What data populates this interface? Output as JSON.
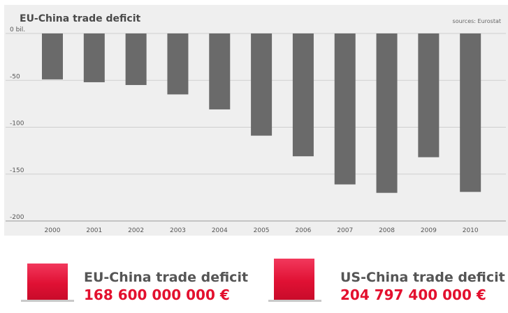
{
  "title": "EU-China trade deficit",
  "source": "sources: Eurostat",
  "chart_data": {
    "type": "bar",
    "title": "EU-China trade deficit",
    "categories": [
      "2000",
      "2001",
      "2002",
      "2003",
      "2004",
      "2005",
      "2006",
      "2007",
      "2008",
      "2009",
      "2010"
    ],
    "values": [
      -49,
      -52,
      -55,
      -65,
      -81,
      -109,
      -131,
      -161,
      -170,
      -132,
      -169
    ],
    "y_ticks": [
      0,
      -50,
      -100,
      -150,
      -200
    ],
    "y_tick_labels": [
      "0 bil.",
      "-50",
      "-100",
      "-150",
      "-200"
    ],
    "ylim": [
      -200,
      0
    ],
    "grid": true,
    "bar_color": "#6a6a6a"
  },
  "legend": [
    {
      "label": "EU-China trade deficit",
      "value": "168 600 000 000 €",
      "color": "#e01134"
    },
    {
      "label": "US-China trade deficit",
      "value": "204 797 400 000 €",
      "color": "#e01134"
    }
  ]
}
